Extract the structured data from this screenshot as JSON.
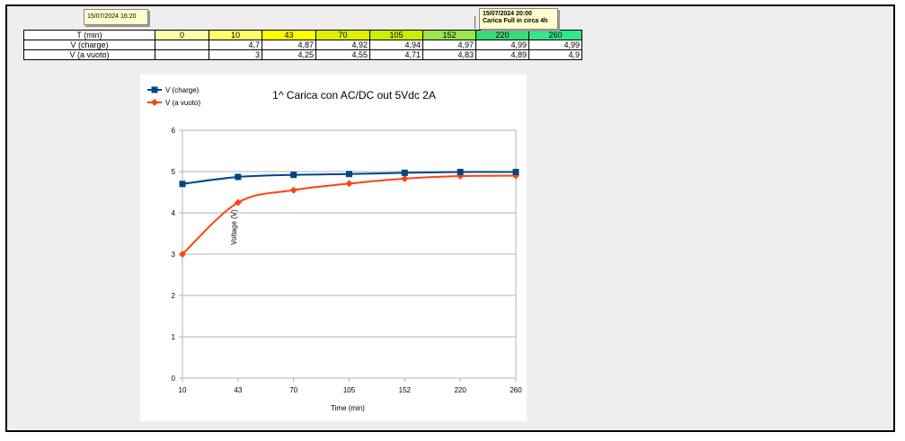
{
  "sheet": {
    "header_label": "T (min)",
    "header_values": [
      "0",
      "10",
      "43",
      "70",
      "105",
      "152",
      "220",
      "260"
    ],
    "header_colors": [
      "#ffffa6",
      "#ffff66",
      "#ffff00",
      "#ddf000",
      "#c9f000",
      "#99e64d",
      "#33dd77",
      "#33e888"
    ],
    "rows": [
      {
        "label": "V (charge)",
        "values": [
          "",
          "4,7",
          "4,87",
          "4,92",
          "4,94",
          "4,97",
          "4,99",
          "4,99"
        ]
      },
      {
        "label": "V (a vuoto)",
        "values": [
          "",
          "3",
          "4,25",
          "4,55",
          "4,71",
          "4,83",
          "4,89",
          "4,9"
        ]
      }
    ]
  },
  "notes": {
    "note1": "15/07/2024 16:20",
    "note2_line1": "15/07/2024 20:00",
    "note2_line2": "Carica Full in circa 4h"
  },
  "chart_data": {
    "type": "line",
    "title": "1^ Carica con AC/DC out 5Vdc 2A",
    "xlabel": "Time (min)",
    "ylabel": "Voltage (V)",
    "categories": [
      "10",
      "43",
      "70",
      "105",
      "152",
      "220",
      "260"
    ],
    "ylim": [
      0,
      6
    ],
    "yticks": [
      "0",
      "1",
      "2",
      "3",
      "4",
      "5",
      "6"
    ],
    "grid": true,
    "legend_position": "top-left",
    "series": [
      {
        "name": "V (charge)",
        "values": [
          4.7,
          4.87,
          4.92,
          4.94,
          4.97,
          4.99,
          4.99
        ],
        "color": "#004586",
        "marker": "square"
      },
      {
        "name": "V (a vuoto)",
        "values": [
          3,
          4.25,
          4.55,
          4.71,
          4.83,
          4.89,
          4.9
        ],
        "color": "#ff420e",
        "marker": "diamond"
      }
    ]
  }
}
